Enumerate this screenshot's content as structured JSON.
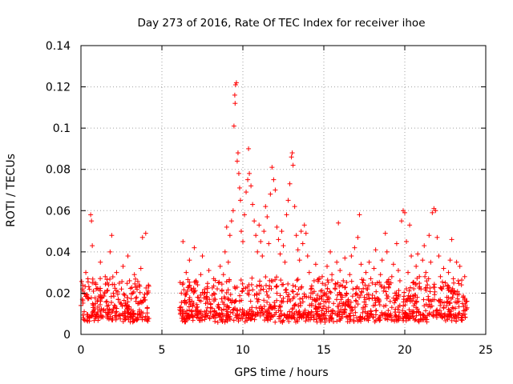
{
  "chart_data": {
    "type": "scatter",
    "title": "Day 273 of 2016, Rate Of TEC Index for receiver ihoe",
    "xlabel": "GPS time / hours",
    "ylabel": "ROTI / TECUs",
    "xlim": [
      0,
      25
    ],
    "ylim": [
      0,
      0.14
    ],
    "xticks": [
      0,
      5,
      10,
      15,
      20,
      25
    ],
    "xtick_labels": [
      "0",
      "5",
      "10",
      "15",
      "20",
      "25"
    ],
    "yticks": [
      0,
      0.02,
      0.04,
      0.06,
      0.08,
      0.1,
      0.12,
      0.14
    ],
    "ytick_labels": [
      "0",
      "0.02",
      "0.04",
      "0.06",
      "0.08",
      "0.1",
      "0.12",
      "0.14"
    ],
    "grid": true,
    "marker": "+",
    "color": "#ff0000",
    "data_gap_hours": [
      4.2,
      6.1
    ],
    "series": [
      {
        "name": "ROTI",
        "points": [
          [
            0.0,
            0.014
          ],
          [
            0.1,
            0.022
          ],
          [
            0.2,
            0.011
          ],
          [
            0.3,
            0.03
          ],
          [
            0.4,
            0.018
          ],
          [
            0.5,
            0.008
          ],
          [
            0.6,
            0.058
          ],
          [
            0.65,
            0.055
          ],
          [
            0.7,
            0.043
          ],
          [
            0.8,
            0.025
          ],
          [
            0.9,
            0.015
          ],
          [
            1.0,
            0.01
          ],
          [
            1.1,
            0.022
          ],
          [
            1.2,
            0.035
          ],
          [
            1.3,
            0.018
          ],
          [
            1.4,
            0.012
          ],
          [
            1.5,
            0.028
          ],
          [
            1.6,
            0.016
          ],
          [
            1.7,
            0.024
          ],
          [
            1.8,
            0.04
          ],
          [
            1.9,
            0.048
          ],
          [
            2.0,
            0.02
          ],
          [
            2.1,
            0.013
          ],
          [
            2.2,
            0.03
          ],
          [
            2.3,
            0.017
          ],
          [
            2.4,
            0.009
          ],
          [
            2.5,
            0.022
          ],
          [
            2.6,
            0.033
          ],
          [
            2.7,
            0.019
          ],
          [
            2.8,
            0.014
          ],
          [
            2.9,
            0.038
          ],
          [
            3.0,
            0.026
          ],
          [
            3.1,
            0.012
          ],
          [
            3.2,
            0.02
          ],
          [
            3.3,
            0.029
          ],
          [
            3.4,
            0.016
          ],
          [
            3.5,
            0.01
          ],
          [
            3.6,
            0.024
          ],
          [
            3.7,
            0.032
          ],
          [
            3.8,
            0.047
          ],
          [
            3.9,
            0.018
          ],
          [
            4.0,
            0.049
          ],
          [
            4.1,
            0.013
          ],
          [
            4.15,
            0.021
          ],
          [
            6.1,
            0.012
          ],
          [
            6.2,
            0.02
          ],
          [
            6.3,
            0.045
          ],
          [
            6.4,
            0.016
          ],
          [
            6.5,
            0.03
          ],
          [
            6.6,
            0.009
          ],
          [
            6.7,
            0.036
          ],
          [
            6.8,
            0.022
          ],
          [
            6.9,
            0.014
          ],
          [
            7.0,
            0.042
          ],
          [
            7.1,
            0.026
          ],
          [
            7.2,
            0.018
          ],
          [
            7.3,
            0.011
          ],
          [
            7.4,
            0.029
          ],
          [
            7.5,
            0.038
          ],
          [
            7.6,
            0.02
          ],
          [
            7.7,
            0.015
          ],
          [
            7.8,
            0.023
          ],
          [
            7.9,
            0.031
          ],
          [
            8.0,
            0.013
          ],
          [
            8.1,
            0.019
          ],
          [
            8.2,
            0.027
          ],
          [
            8.3,
            0.017
          ],
          [
            8.4,
            0.01
          ],
          [
            8.5,
            0.025
          ],
          [
            8.6,
            0.033
          ],
          [
            8.7,
            0.021
          ],
          [
            8.8,
            0.029
          ],
          [
            8.9,
            0.04
          ],
          [
            9.0,
            0.052
          ],
          [
            9.1,
            0.035
          ],
          [
            9.2,
            0.048
          ],
          [
            9.3,
            0.055
          ],
          [
            9.4,
            0.06
          ],
          [
            9.45,
            0.101
          ],
          [
            9.5,
            0.116
          ],
          [
            9.52,
            0.112
          ],
          [
            9.55,
            0.121
          ],
          [
            9.6,
            0.122
          ],
          [
            9.65,
            0.084
          ],
          [
            9.7,
            0.088
          ],
          [
            9.75,
            0.078
          ],
          [
            9.8,
            0.071
          ],
          [
            9.85,
            0.065
          ],
          [
            9.9,
            0.05
          ],
          [
            10.0,
            0.045
          ],
          [
            10.1,
            0.058
          ],
          [
            10.2,
            0.069
          ],
          [
            10.3,
            0.075
          ],
          [
            10.35,
            0.09
          ],
          [
            10.4,
            0.078
          ],
          [
            10.5,
            0.072
          ],
          [
            10.6,
            0.063
          ],
          [
            10.7,
            0.055
          ],
          [
            10.8,
            0.048
          ],
          [
            10.9,
            0.04
          ],
          [
            11.0,
            0.053
          ],
          [
            11.1,
            0.045
          ],
          [
            11.2,
            0.038
          ],
          [
            11.3,
            0.05
          ],
          [
            11.4,
            0.062
          ],
          [
            11.5,
            0.057
          ],
          [
            11.6,
            0.044
          ],
          [
            11.7,
            0.068
          ],
          [
            11.8,
            0.081
          ],
          [
            11.9,
            0.075
          ],
          [
            12.0,
            0.07
          ],
          [
            12.1,
            0.052
          ],
          [
            12.2,
            0.046
          ],
          [
            12.3,
            0.039
          ],
          [
            12.4,
            0.05
          ],
          [
            12.5,
            0.043
          ],
          [
            12.6,
            0.035
          ],
          [
            12.7,
            0.058
          ],
          [
            12.8,
            0.065
          ],
          [
            12.9,
            0.073
          ],
          [
            13.0,
            0.086
          ],
          [
            13.05,
            0.088
          ],
          [
            13.1,
            0.082
          ],
          [
            13.2,
            0.062
          ],
          [
            13.3,
            0.048
          ],
          [
            13.4,
            0.041
          ],
          [
            13.5,
            0.036
          ],
          [
            13.6,
            0.05
          ],
          [
            13.7,
            0.044
          ],
          [
            13.8,
            0.053
          ],
          [
            13.9,
            0.049
          ],
          [
            14.0,
            0.038
          ],
          [
            14.1,
            0.03
          ],
          [
            14.2,
            0.022
          ],
          [
            14.3,
            0.017
          ],
          [
            14.4,
            0.026
          ],
          [
            14.5,
            0.034
          ],
          [
            14.6,
            0.019
          ],
          [
            14.7,
            0.013
          ],
          [
            14.8,
            0.021
          ],
          [
            14.9,
            0.028
          ],
          [
            15.0,
            0.016
          ],
          [
            15.1,
            0.024
          ],
          [
            15.2,
            0.033
          ],
          [
            15.3,
            0.018
          ],
          [
            15.4,
            0.04
          ],
          [
            15.5,
            0.029
          ],
          [
            15.6,
            0.015
          ],
          [
            15.7,
            0.022
          ],
          [
            15.8,
            0.035
          ],
          [
            15.9,
            0.054
          ],
          [
            16.0,
            0.031
          ],
          [
            16.1,
            0.019
          ],
          [
            16.2,
            0.026
          ],
          [
            16.3,
            0.037
          ],
          [
            16.4,
            0.02
          ],
          [
            16.5,
            0.014
          ],
          [
            16.6,
            0.029
          ],
          [
            16.7,
            0.038
          ],
          [
            16.8,
            0.022
          ],
          [
            16.9,
            0.042
          ],
          [
            17.0,
            0.016
          ],
          [
            17.1,
            0.047
          ],
          [
            17.2,
            0.058
          ],
          [
            17.3,
            0.034
          ],
          [
            17.4,
            0.025
          ],
          [
            17.5,
            0.018
          ],
          [
            17.6,
            0.03
          ],
          [
            17.7,
            0.022
          ],
          [
            17.8,
            0.035
          ],
          [
            17.9,
            0.027
          ],
          [
            18.0,
            0.019
          ],
          [
            18.1,
            0.032
          ],
          [
            18.2,
            0.041
          ],
          [
            18.3,
            0.025
          ],
          [
            18.4,
            0.017
          ],
          [
            18.5,
            0.029
          ],
          [
            18.6,
            0.036
          ],
          [
            18.7,
            0.021
          ],
          [
            18.8,
            0.049
          ],
          [
            18.9,
            0.04
          ],
          [
            19.0,
            0.023
          ],
          [
            19.1,
            0.016
          ],
          [
            19.2,
            0.028
          ],
          [
            19.3,
            0.034
          ],
          [
            19.4,
            0.02
          ],
          [
            19.5,
            0.044
          ],
          [
            19.6,
            0.031
          ],
          [
            19.7,
            0.026
          ],
          [
            19.8,
            0.055
          ],
          [
            19.9,
            0.06
          ],
          [
            20.0,
            0.059
          ],
          [
            20.1,
            0.045
          ],
          [
            20.2,
            0.03
          ],
          [
            20.3,
            0.053
          ],
          [
            20.4,
            0.038
          ],
          [
            20.5,
            0.025
          ],
          [
            20.6,
            0.019
          ],
          [
            20.7,
            0.033
          ],
          [
            20.8,
            0.039
          ],
          [
            20.9,
            0.028
          ],
          [
            21.0,
            0.022
          ],
          [
            21.1,
            0.036
          ],
          [
            21.2,
            0.043
          ],
          [
            21.3,
            0.03
          ],
          [
            21.4,
            0.024
          ],
          [
            21.5,
            0.048
          ],
          [
            21.6,
            0.035
          ],
          [
            21.7,
            0.059
          ],
          [
            21.8,
            0.061
          ],
          [
            21.9,
            0.06
          ],
          [
            22.0,
            0.047
          ],
          [
            22.1,
            0.038
          ],
          [
            22.2,
            0.028
          ],
          [
            22.3,
            0.022
          ],
          [
            22.4,
            0.032
          ],
          [
            22.5,
            0.025
          ],
          [
            22.6,
            0.018
          ],
          [
            22.7,
            0.03
          ],
          [
            22.8,
            0.036
          ],
          [
            22.9,
            0.046
          ],
          [
            23.0,
            0.027
          ],
          [
            23.1,
            0.02
          ],
          [
            23.2,
            0.035
          ],
          [
            23.3,
            0.026
          ],
          [
            23.4,
            0.033
          ],
          [
            23.5,
            0.024
          ],
          [
            23.6,
            0.018
          ],
          [
            23.7,
            0.028
          ],
          [
            23.8,
            0.016
          ]
        ]
      }
    ],
    "dense_band": {
      "description": "dense cloud of markers along the bottom of the data",
      "segments": [
        [
          0.0,
          4.2
        ],
        [
          6.1,
          23.9
        ]
      ],
      "y_min": 0.002,
      "y_max": 0.028
    }
  }
}
